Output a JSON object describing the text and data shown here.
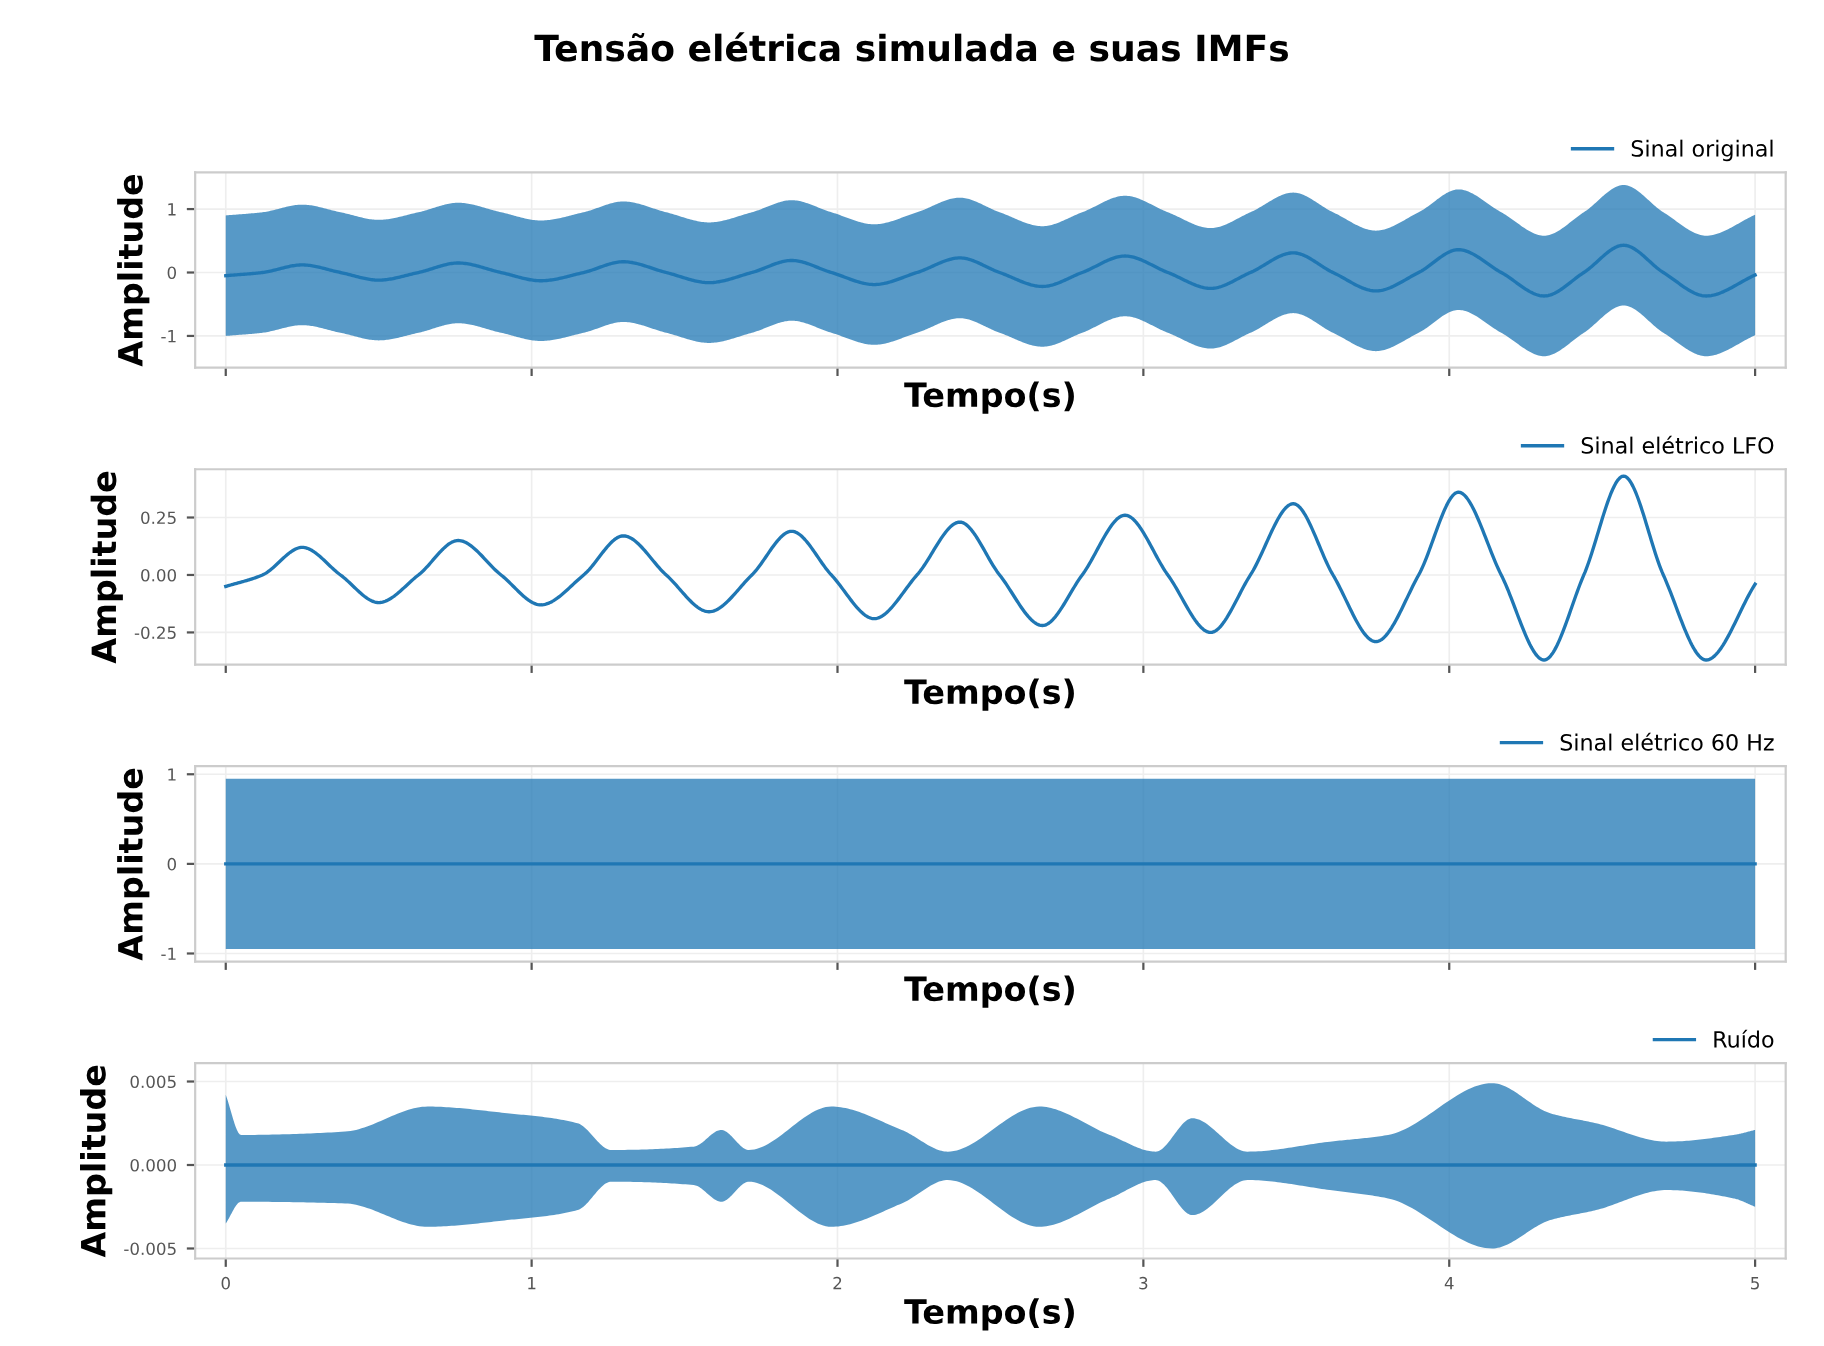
{
  "chart_data": [
    {
      "type": "line",
      "title": "Tensão elétrica simulada e suas IMFs",
      "xlabel": "Tempo(s)",
      "ylabel": "Amplitude",
      "xlim": [
        -0.1,
        5.1
      ],
      "xticks": [
        0,
        1,
        2,
        3,
        4,
        5
      ],
      "ylim": [
        -1.5,
        1.58
      ],
      "yticks": [
        -1,
        0,
        1
      ],
      "grid": true,
      "legend": "top right",
      "tick_labels": "y",
      "series": [
        {
          "name": "Sinal original",
          "color": "#1f77b4",
          "x": [
            0,
            0.12,
            0.25,
            0.375,
            0.5,
            0.63,
            0.76,
            0.9,
            1.03,
            1.17,
            1.3,
            1.44,
            1.58,
            1.72,
            1.85,
            1.98,
            2.12,
            2.26,
            2.4,
            2.53,
            2.67,
            2.8,
            2.94,
            3.08,
            3.22,
            3.35,
            3.49,
            3.62,
            3.76,
            3.9,
            4.03,
            4.17,
            4.31,
            4.44,
            4.57,
            4.7,
            4.84,
            5.0
          ],
          "values": [
            -0.05,
            0,
            0.12,
            0,
            -0.12,
            0,
            0.15,
            0,
            -0.13,
            0,
            0.17,
            0,
            -0.16,
            0,
            0.19,
            0,
            -0.19,
            0,
            0.23,
            0,
            -0.22,
            0,
            0.26,
            0,
            -0.25,
            0,
            0.31,
            0,
            -0.29,
            0,
            0.36,
            0,
            -0.37,
            0,
            0.43,
            0,
            -0.37,
            -0.04
          ],
          "upper": [
            0.9,
            0.95,
            1.07,
            0.95,
            0.83,
            0.95,
            1.1,
            0.95,
            0.82,
            0.95,
            1.12,
            0.95,
            0.79,
            0.95,
            1.14,
            0.95,
            0.76,
            0.95,
            1.18,
            0.95,
            0.73,
            0.95,
            1.21,
            0.95,
            0.7,
            0.95,
            1.26,
            0.95,
            0.66,
            0.95,
            1.31,
            0.95,
            0.58,
            0.95,
            1.38,
            0.95,
            0.58,
            0.91
          ],
          "lower": [
            -1.0,
            -0.95,
            -0.83,
            -0.95,
            -1.07,
            -0.95,
            -0.8,
            -0.95,
            -1.08,
            -0.95,
            -0.78,
            -0.95,
            -1.11,
            -0.95,
            -0.76,
            -0.95,
            -1.14,
            -0.95,
            -0.72,
            -0.95,
            -1.17,
            -0.95,
            -0.69,
            -0.95,
            -1.2,
            -0.95,
            -0.64,
            -0.95,
            -1.24,
            -0.95,
            -0.59,
            -0.95,
            -1.32,
            -0.95,
            -0.52,
            -0.95,
            -1.32,
            -0.99
          ]
        }
      ]
    },
    {
      "type": "line",
      "xlabel": "Tempo(s)",
      "ylabel": "Amplitude",
      "xlim": [
        -0.1,
        5.1
      ],
      "xticks": [
        0,
        1,
        2,
        3,
        4,
        5
      ],
      "ylim": [
        -0.39,
        0.46
      ],
      "yticks": [
        {
          "value": -0.25,
          "label": "-0.25"
        },
        {
          "value": 0,
          "label": "0.00"
        },
        {
          "value": 0.25,
          "label": "0.25"
        }
      ],
      "grid": true,
      "legend": "top right",
      "tick_labels": "y",
      "series": [
        {
          "name": "Sinal elétrico LFO",
          "color": "#1f77b4",
          "x": [
            0,
            0.12,
            0.25,
            0.375,
            0.5,
            0.63,
            0.76,
            0.9,
            1.03,
            1.17,
            1.3,
            1.44,
            1.58,
            1.72,
            1.85,
            1.98,
            2.12,
            2.26,
            2.4,
            2.53,
            2.67,
            2.8,
            2.94,
            3.08,
            3.22,
            3.35,
            3.49,
            3.62,
            3.76,
            3.9,
            4.03,
            4.17,
            4.31,
            4.44,
            4.57,
            4.7,
            4.84,
            5.0
          ],
          "values": [
            -0.05,
            0,
            0.12,
            0,
            -0.12,
            0,
            0.15,
            0,
            -0.13,
            0,
            0.17,
            0,
            -0.16,
            0,
            0.19,
            0,
            -0.19,
            0,
            0.23,
            0,
            -0.22,
            0,
            0.26,
            0,
            -0.25,
            0,
            0.31,
            0,
            -0.29,
            0,
            0.36,
            0,
            -0.37,
            0,
            0.43,
            0,
            -0.37,
            -0.04
          ]
        }
      ]
    },
    {
      "type": "line",
      "xlabel": "Tempo(s)",
      "ylabel": "Amplitude",
      "xlim": [
        -0.1,
        5.1
      ],
      "xticks": [
        0,
        1,
        2,
        3,
        4,
        5
      ],
      "ylim": [
        -1.09,
        1.09
      ],
      "yticks": [
        -1,
        0,
        1
      ],
      "grid": true,
      "legend": "top right",
      "tick_labels": "y",
      "series": [
        {
          "name": "Sinal elétrico 60 Hz",
          "color": "#1f77b4",
          "x": [
            0,
            5
          ],
          "values": [
            0,
            0
          ],
          "upper": [
            0.95,
            0.95
          ],
          "lower": [
            -0.95,
            -0.95
          ]
        }
      ]
    },
    {
      "type": "line",
      "xlabel": "Tempo(s)",
      "ylabel": "Amplitude",
      "xlim": [
        -0.1,
        5.1
      ],
      "xticks": [
        0,
        1,
        2,
        3,
        4,
        5
      ],
      "ylim": [
        -0.0056,
        0.0061
      ],
      "yticks": [
        {
          "value": -0.005,
          "label": "-0.005"
        },
        {
          "value": 0,
          "label": "0.000"
        },
        {
          "value": 0.005,
          "label": "0.005"
        }
      ],
      "grid": true,
      "legend": "top right",
      "series": [
        {
          "name": "Ruído",
          "color": "#1f77b4",
          "x": [
            0,
            0.05,
            0.39,
            0.66,
            0.92,
            1.15,
            1.26,
            1.53,
            1.62,
            1.71,
            1.98,
            2.21,
            2.36,
            2.66,
            2.89,
            3.04,
            3.16,
            3.34,
            3.61,
            3.8,
            4.14,
            4.33,
            4.48,
            4.71,
            4.93,
            5.0
          ],
          "values": [
            0,
            0,
            0,
            0,
            0,
            0,
            0,
            0,
            0,
            0,
            0,
            0,
            0,
            0,
            0,
            0,
            0,
            0,
            0,
            0,
            0,
            0,
            0,
            0,
            0,
            0
          ],
          "upper": [
            0.0042,
            0.0018,
            0.002,
            0.0035,
            0.0031,
            0.0025,
            0.0009,
            0.0011,
            0.0021,
            0.0009,
            0.0035,
            0.0021,
            0.0008,
            0.0035,
            0.0018,
            0.0008,
            0.0028,
            0.0008,
            0.0014,
            0.0018,
            0.0049,
            0.0031,
            0.0025,
            0.0014,
            0.0018,
            0.0021
          ],
          "lower": [
            -0.0035,
            -0.0022,
            -0.0023,
            -0.0037,
            -0.0033,
            -0.0027,
            -0.001,
            -0.0012,
            -0.0022,
            -0.001,
            -0.0037,
            -0.0023,
            -0.0009,
            -0.0037,
            -0.002,
            -0.0009,
            -0.003,
            -0.0009,
            -0.0015,
            -0.002,
            -0.005,
            -0.0033,
            -0.0027,
            -0.0015,
            -0.002,
            -0.0025
          ]
        }
      ]
    }
  ]
}
